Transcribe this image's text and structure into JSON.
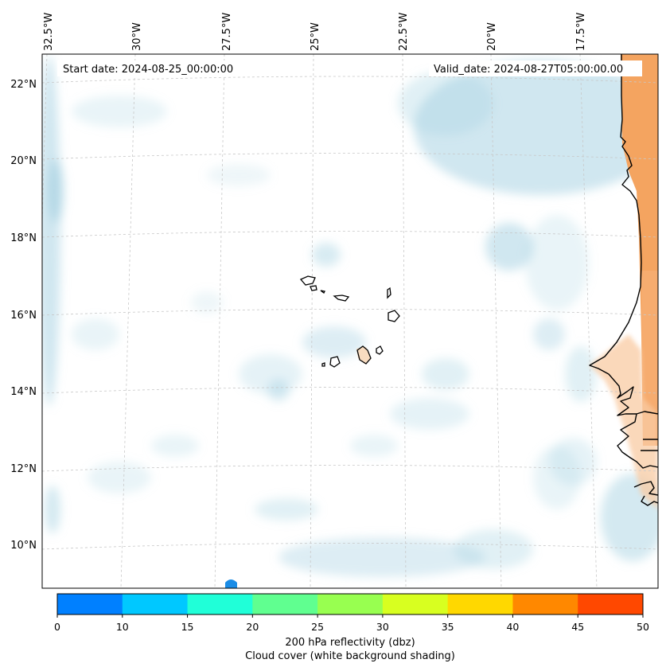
{
  "annotations": {
    "start_label": "Start date: 2024-08-25_00:00:00",
    "valid_label": "Valid_date: 2024-08-27T05:00:00.00"
  },
  "map": {
    "longitude_labels": [
      "32.5°W",
      "30°W",
      "27.5°W",
      "25°W",
      "22.5°W",
      "20°W",
      "17.5°W"
    ],
    "latitude_labels": [
      "22°N",
      "20°N",
      "18°N",
      "16°N",
      "14°N",
      "12°N",
      "10°N"
    ],
    "cloud_color": "#a9d3e3",
    "land_reflectivity_color": "#f4a460",
    "coastline_color": "#000000"
  },
  "colorbar": {
    "ticks": [
      "0",
      "10",
      "15",
      "20",
      "25",
      "30",
      "35",
      "40",
      "45",
      "50"
    ],
    "colors": [
      "#0080ff",
      "#00c8ff",
      "#20ffd8",
      "#60ff90",
      "#98ff50",
      "#d8ff20",
      "#ffd800",
      "#ff8800",
      "#ff4800"
    ],
    "label_line1": "200 hPa reflectivity (dbz)",
    "label_line2": "Cloud cover (white background shading)"
  }
}
